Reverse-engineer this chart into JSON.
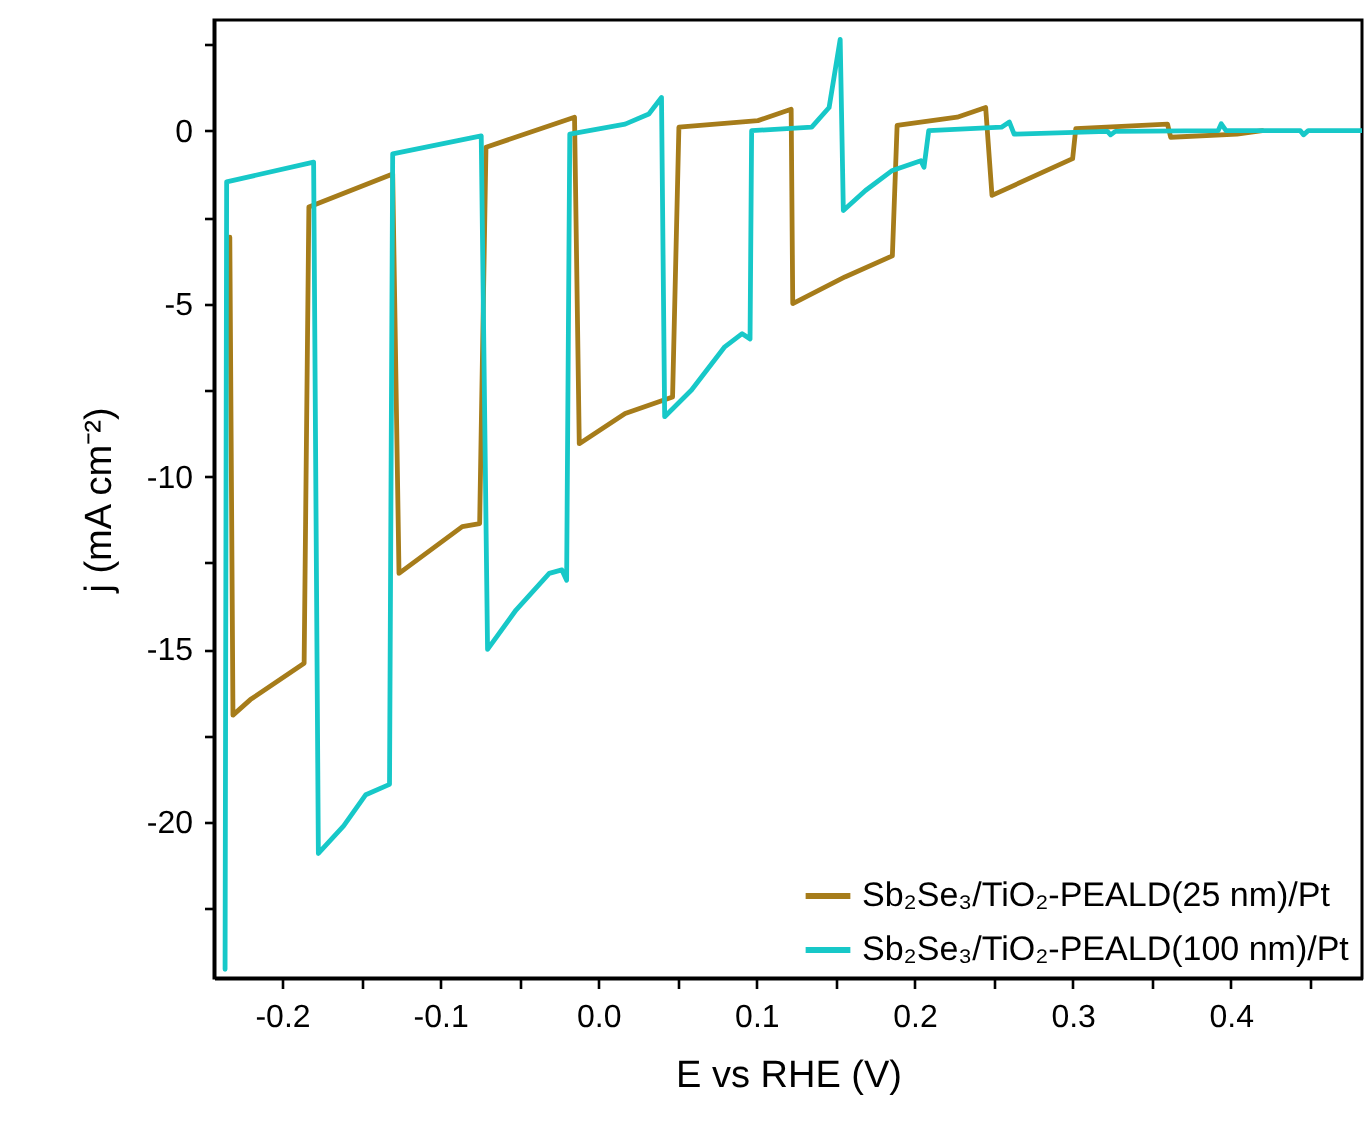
{
  "chart_data": {
    "type": "line",
    "xlabel": "E vs RHE (V)",
    "ylabel": "j (mA cm⁻²)",
    "xlim": [
      -0.243,
      0.483
    ],
    "ylim": [
      -24.5,
      3.2
    ],
    "xticks": [
      -0.2,
      {
        "value": -0.15,
        "label": null
      },
      -0.1,
      {
        "value": -0.05,
        "label": null
      },
      {
        "value": 0,
        "label": "0.0"
      },
      {
        "value": 0.05,
        "label": null
      },
      0.1,
      {
        "value": 0.15,
        "label": null
      },
      0.2,
      {
        "value": 0.25,
        "label": null
      },
      0.3,
      {
        "value": 0.35,
        "label": null
      },
      0.4,
      {
        "value": 0.45,
        "label": null
      }
    ],
    "yticks": [
      -20,
      {
        "value": -22.5,
        "label": null
      },
      {
        "value": -17.5,
        "label": null
      },
      -15,
      {
        "value": -12.5,
        "label": null
      },
      -10,
      {
        "value": -7.5,
        "label": null
      },
      -5,
      {
        "value": -2.5,
        "label": null
      },
      0,
      {
        "value": 2.5,
        "label": null
      }
    ],
    "legend": "bottom right",
    "grid": false,
    "series": [
      {
        "name": "Sb₂Se₃/TiO₂-PEALD(25 nm)/Pt",
        "color": "#a67c1a",
        "x": [
          -0.233,
          -0.231,
          -0.22,
          -0.186,
          -0.183,
          -0.13,
          -0.126,
          -0.086,
          -0.075,
          -0.071,
          -0.015,
          -0.012,
          0.017,
          0.047,
          0.051,
          0.101,
          0.122,
          0.123,
          0.156,
          0.186,
          0.189,
          0.227,
          0.245,
          0.249,
          0.3,
          0.302,
          0.36,
          0.362,
          0.404,
          0.42
        ],
        "values": [
          -3.08,
          -16.9,
          -16.45,
          -15.4,
          -2.21,
          -1.25,
          -12.8,
          -11.45,
          -11.36,
          -0.48,
          0.39,
          -9.05,
          -8.18,
          -7.7,
          0.1,
          0.29,
          0.62,
          -5.0,
          -4.23,
          -3.62,
          0.15,
          0.39,
          0.67,
          -1.87,
          -0.81,
          0.06,
          0.19,
          -0.19,
          -0.1,
          0.0
        ]
      },
      {
        "name": "Sb₂Se₃/TiO₂-PEALD(100 nm)/Pt",
        "color": "#17c8c8",
        "x": [
          -0.236,
          -0.235,
          -0.18,
          -0.177,
          -0.161,
          -0.147,
          -0.132,
          -0.13,
          -0.074,
          -0.07,
          -0.052,
          -0.031,
          -0.023,
          -0.02,
          -0.018,
          0.017,
          0.032,
          0.04,
          0.042,
          0.059,
          0.08,
          0.091,
          0.096,
          0.097,
          0.135,
          0.146,
          0.153,
          0.155,
          0.169,
          0.186,
          0.204,
          0.206,
          0.209,
          0.255,
          0.26,
          0.263,
          0.322,
          0.324,
          0.327,
          0.392,
          0.394,
          0.397,
          0.444,
          0.446,
          0.449,
          0.483
        ],
        "values": [
          -24.25,
          -1.48,
          -0.91,
          -20.9,
          -20.1,
          -19.2,
          -18.9,
          -0.67,
          -0.15,
          -15.0,
          -13.86,
          -12.8,
          -12.7,
          -13.0,
          -0.1,
          0.19,
          0.48,
          0.96,
          -8.27,
          -7.5,
          -6.25,
          -5.87,
          -6.02,
          0.0,
          0.1,
          0.67,
          2.64,
          -2.31,
          -1.73,
          -1.15,
          -0.87,
          -1.06,
          0.0,
          0.1,
          0.25,
          -0.1,
          -0.02,
          -0.12,
          -0.02,
          0.0,
          0.2,
          0.0,
          0.0,
          -0.12,
          0.0,
          0.0
        ]
      }
    ]
  }
}
